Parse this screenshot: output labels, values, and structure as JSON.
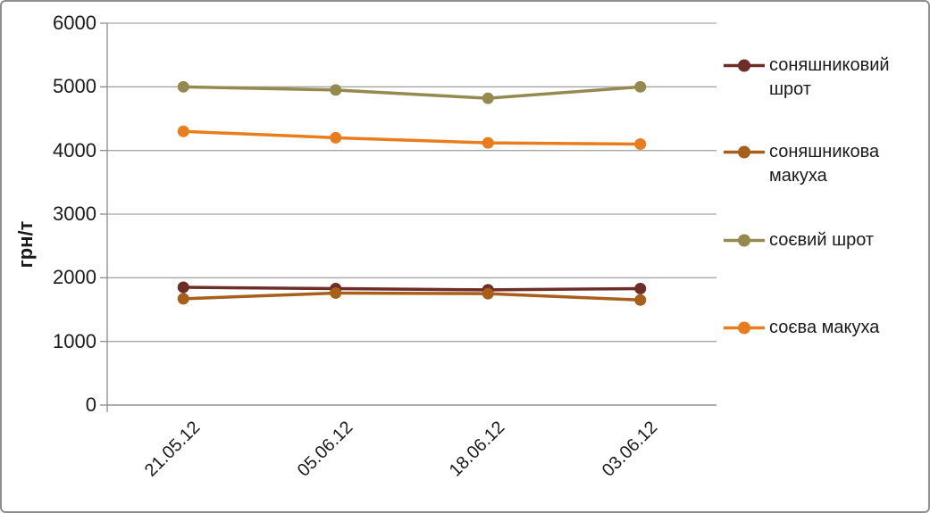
{
  "chart_data": {
    "type": "line",
    "title": "",
    "ylabel": "грн/т",
    "xlabel": "",
    "ylim": [
      0,
      6000
    ],
    "yticks": [
      0,
      1000,
      2000,
      3000,
      4000,
      5000,
      6000
    ],
    "grid": "horizontal",
    "legend_position": "right",
    "categories": [
      "21.05.12",
      "05.06.12",
      "18.06.12",
      "03.06.12"
    ],
    "series": [
      {
        "name": "соняшниковий шрот",
        "color": "#6E2D26",
        "values": [
          1850,
          1830,
          1810,
          1830
        ]
      },
      {
        "name": "соняшникова макуха",
        "color": "#A75F1B",
        "values": [
          1670,
          1760,
          1750,
          1650
        ]
      },
      {
        "name": "соєвий шрот",
        "color": "#94894F",
        "values": [
          5000,
          4950,
          4820,
          5000
        ]
      },
      {
        "name": "соєва макуха",
        "color": "#E87D1E",
        "values": [
          4300,
          4200,
          4120,
          4100
        ]
      }
    ]
  },
  "colors": {
    "gridline": "#a6a6a6",
    "axis": "#8c8c8c",
    "frame_border": "#8f8f8f",
    "background": "#ffffff",
    "text": "#1a1a1a"
  }
}
